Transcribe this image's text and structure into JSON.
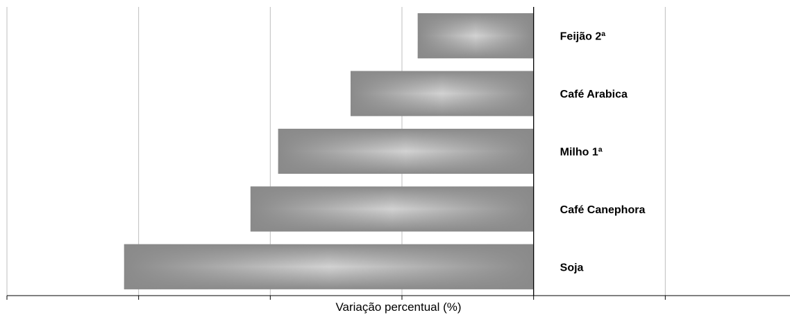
{
  "chart_data": {
    "type": "bar",
    "orientation": "horizontal",
    "categories": [
      "Feijão 2ª",
      "Café Arabica",
      "Milho 1ª",
      "Café Canephora",
      "Soja"
    ],
    "values": [
      -8.8,
      -13.9,
      -19.4,
      -21.5,
      -31.1
    ],
    "xlabel": "Variação percentual (%)",
    "ylabel": "",
    "xlim": [
      -40,
      20
    ],
    "x_gridline_step": 10,
    "tick_labels_shown": false,
    "grid": true,
    "bar_color": "#8c8c8c",
    "bar_highlight_color": "#cfcfcf"
  }
}
